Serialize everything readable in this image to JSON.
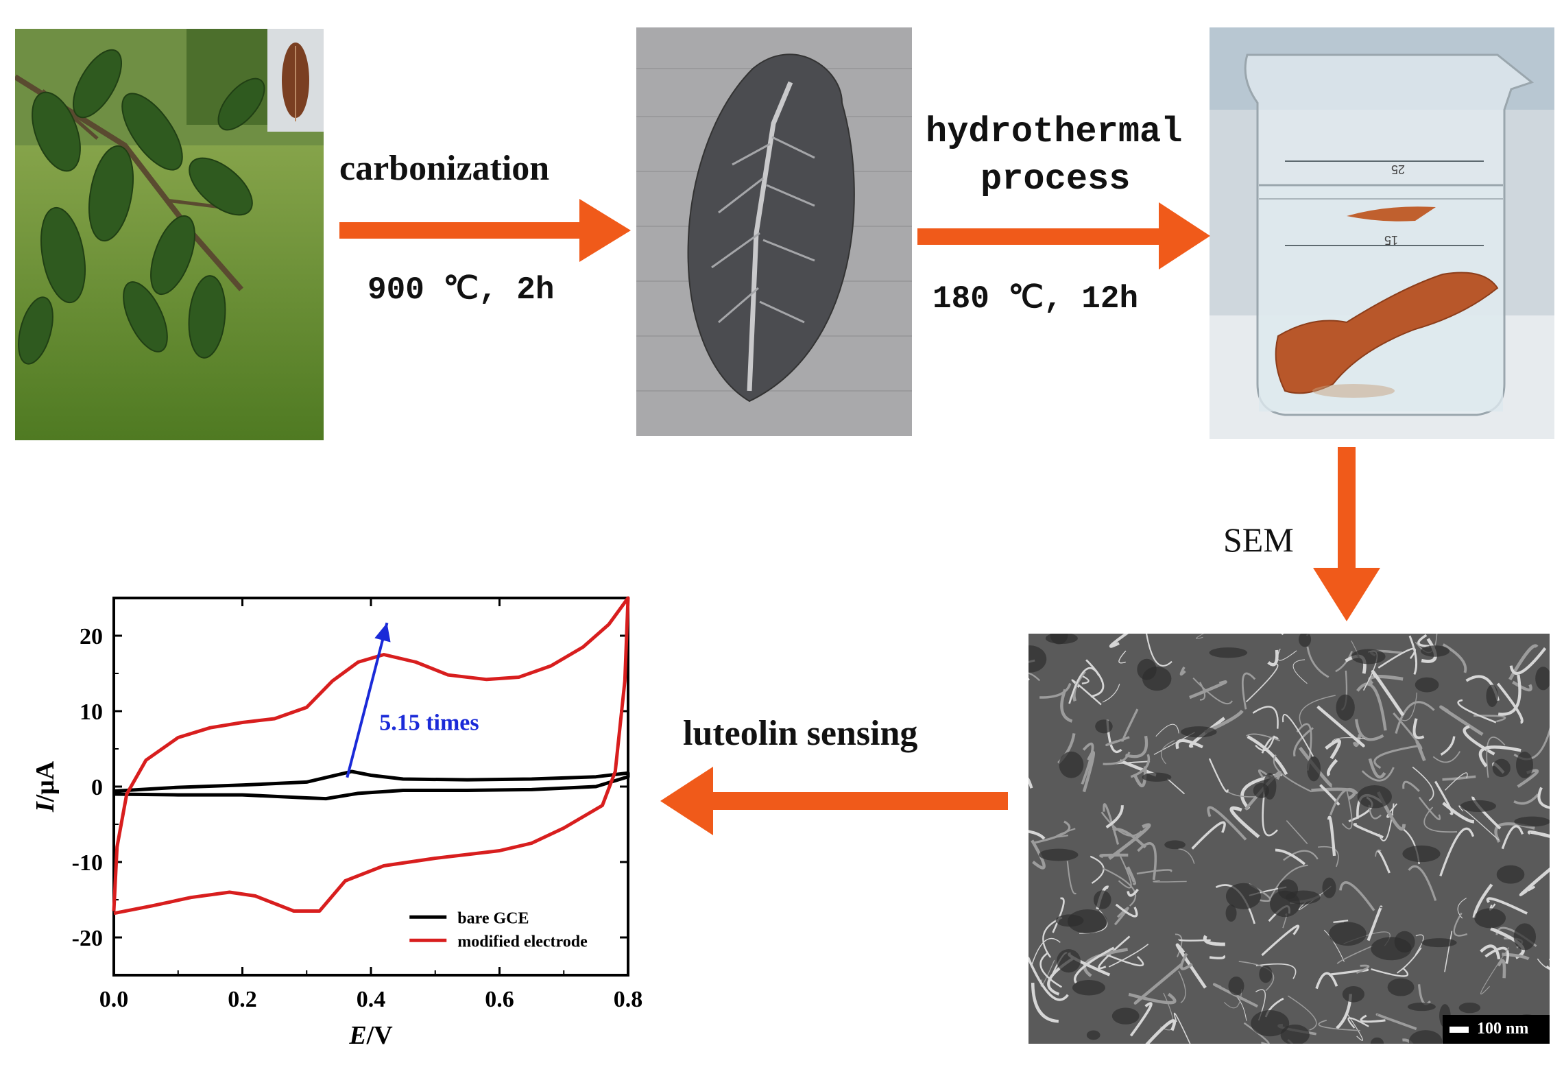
{
  "colors": {
    "arrow": "#f05a1a",
    "bare": "#000000",
    "modified": "#d81e1e",
    "annotation": "#1a2ad8"
  },
  "steps": {
    "carbonization": {
      "title": "carbonization",
      "condition": "900 ℃, 2h"
    },
    "hydrothermal": {
      "title_line1": "hydrothermal",
      "title_line2": "process",
      "condition": "180 ℃, 12h"
    },
    "sem": {
      "title": "SEM"
    },
    "sensing": {
      "title": "luteolin sensing"
    }
  },
  "sem_image": {
    "scale_bar": "100 nm"
  },
  "beaker": {
    "mark_upper": "25",
    "mark_lower": "15"
  },
  "chart_data": {
    "type": "line",
    "xlabel_italic": "E",
    "xlabel_unit": "/V",
    "ylabel_italic": "I",
    "ylabel_unit": "/μA",
    "xlim": [
      0.0,
      0.8
    ],
    "ylim": [
      -25,
      25
    ],
    "xticks": [
      "0.0",
      "0.2",
      "0.4",
      "0.6",
      "0.8"
    ],
    "yticks": [
      "-20",
      "-10",
      "0",
      "10",
      "20"
    ],
    "annotation": "5.15 times",
    "legend": {
      "position": "bottom-right",
      "entries": [
        "bare GCE",
        "modified electrode"
      ]
    },
    "series": [
      {
        "name": "bare GCE",
        "forward": [
          [
            0.0,
            -0.6
          ],
          [
            0.1,
            -0.1
          ],
          [
            0.2,
            0.2
          ],
          [
            0.3,
            0.6
          ],
          [
            0.33,
            1.2
          ],
          [
            0.37,
            2.0
          ],
          [
            0.4,
            1.5
          ],
          [
            0.45,
            1.0
          ],
          [
            0.55,
            0.9
          ],
          [
            0.65,
            1.0
          ],
          [
            0.75,
            1.3
          ],
          [
            0.8,
            1.8
          ]
        ],
        "reverse": [
          [
            0.8,
            1.3
          ],
          [
            0.75,
            0.0
          ],
          [
            0.65,
            -0.4
          ],
          [
            0.55,
            -0.5
          ],
          [
            0.45,
            -0.5
          ],
          [
            0.38,
            -0.9
          ],
          [
            0.33,
            -1.6
          ],
          [
            0.3,
            -1.5
          ],
          [
            0.2,
            -1.1
          ],
          [
            0.1,
            -1.1
          ],
          [
            0.0,
            -1.0
          ]
        ]
      },
      {
        "name": "modified electrode",
        "forward": [
          [
            0.0,
            -16.5
          ],
          [
            0.005,
            -8.0
          ],
          [
            0.02,
            -1.0
          ],
          [
            0.05,
            3.5
          ],
          [
            0.1,
            6.5
          ],
          [
            0.15,
            7.8
          ],
          [
            0.2,
            8.5
          ],
          [
            0.25,
            9.0
          ],
          [
            0.3,
            10.5
          ],
          [
            0.34,
            14.0
          ],
          [
            0.38,
            16.5
          ],
          [
            0.42,
            17.5
          ],
          [
            0.47,
            16.5
          ],
          [
            0.52,
            14.8
          ],
          [
            0.58,
            14.2
          ],
          [
            0.63,
            14.5
          ],
          [
            0.68,
            16.0
          ],
          [
            0.73,
            18.5
          ],
          [
            0.77,
            21.5
          ],
          [
            0.8,
            25.0
          ]
        ],
        "reverse": [
          [
            0.8,
            25.0
          ],
          [
            0.795,
            14.0
          ],
          [
            0.78,
            2.0
          ],
          [
            0.76,
            -2.5
          ],
          [
            0.7,
            -5.5
          ],
          [
            0.65,
            -7.5
          ],
          [
            0.6,
            -8.5
          ],
          [
            0.5,
            -9.5
          ],
          [
            0.42,
            -10.5
          ],
          [
            0.36,
            -12.5
          ],
          [
            0.32,
            -16.5
          ],
          [
            0.28,
            -16.5
          ],
          [
            0.22,
            -14.5
          ],
          [
            0.18,
            -14.0
          ],
          [
            0.12,
            -14.7
          ],
          [
            0.06,
            -15.8
          ],
          [
            0.0,
            -16.8
          ]
        ]
      }
    ]
  }
}
